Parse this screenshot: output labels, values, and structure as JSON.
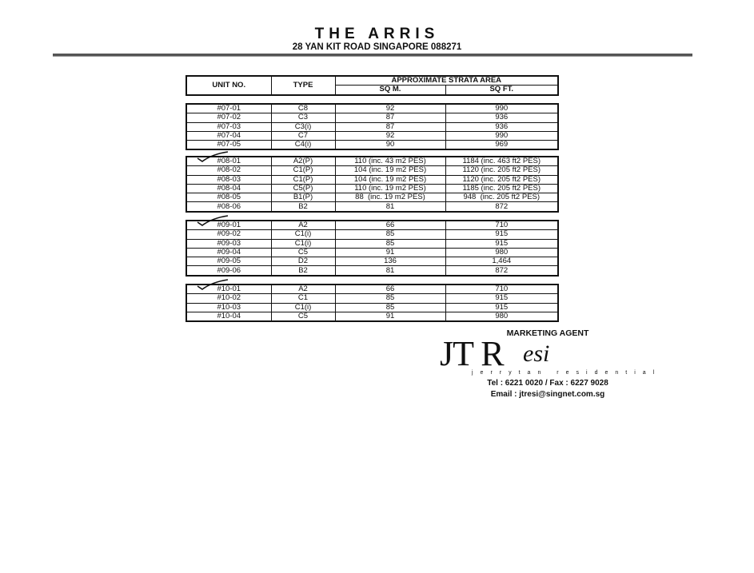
{
  "header": {
    "title": "THE ARRIS",
    "address": "28 YAN KIT ROAD SINGAPORE 088271"
  },
  "table": {
    "columns": {
      "unit": "UNIT NO.",
      "type": "TYPE",
      "area": "APPROXIMATE STRATA AREA",
      "sqm": "SQ M.",
      "sqft": "SQ FT."
    },
    "groups": [
      {
        "ticked": false,
        "rows": [
          [
            "#07-01",
            "C8",
            "92",
            "990"
          ],
          [
            "#07-02",
            "C3",
            "87",
            "936"
          ],
          [
            "#07-03",
            "C3(i)",
            "87",
            "936"
          ],
          [
            "#07-04",
            "C7",
            "92",
            "990"
          ],
          [
            "#07-05",
            "C4(i)",
            "90",
            "969"
          ]
        ]
      },
      {
        "ticked": true,
        "rows": [
          [
            "#08-01",
            "A2(P)",
            "110 (inc. 43 m2 PES)",
            "1184 (inc. 463 ft2 PES)"
          ],
          [
            "#08-02",
            "C1(P)",
            "104 (inc. 19 m2 PES)",
            "1120 (inc. 205 ft2 PES)"
          ],
          [
            "#08-03",
            "C1(P)",
            "104 (inc. 19 m2 PES)",
            "1120 (inc. 205 ft2 PES)"
          ],
          [
            "#08-04",
            "C5(P)",
            "110 (inc. 19 m2 PES)",
            "1185 (inc. 205 ft2 PES)"
          ],
          [
            "#08-05",
            "B1(P)",
            "88  (inc. 19 m2 PES)",
            "948  (inc. 205 ft2 PES)"
          ],
          [
            "#08-06",
            "B2",
            "81",
            "872"
          ]
        ]
      },
      {
        "ticked": true,
        "rows": [
          [
            "#09-01",
            "A2",
            "66",
            "710"
          ],
          [
            "#09-02",
            "C1(i)",
            "85",
            "915"
          ],
          [
            "#09-03",
            "C1(i)",
            "85",
            "915"
          ],
          [
            "#09-04",
            "C5",
            "91",
            "980"
          ],
          [
            "#09-05",
            "D2",
            "136",
            "1,464"
          ],
          [
            "#09-06",
            "B2",
            "81",
            "872"
          ]
        ]
      },
      {
        "ticked": true,
        "rows": [
          [
            "#10-01",
            "A2",
            "66",
            "710"
          ],
          [
            "#10-02",
            "C1",
            "85",
            "915"
          ],
          [
            "#10-03",
            "C1(i)",
            "85",
            "915"
          ],
          [
            "#10-04",
            "C5",
            "91",
            "980"
          ]
        ]
      }
    ]
  },
  "agent": {
    "label": "MARKETING AGENT",
    "logo": "JTResi",
    "logo_sub": "jerrytan residential",
    "tel": "Tel : 6221 0020 / Fax : 6227 9028",
    "email": "Email : jtresi@singnet.com.sg"
  }
}
